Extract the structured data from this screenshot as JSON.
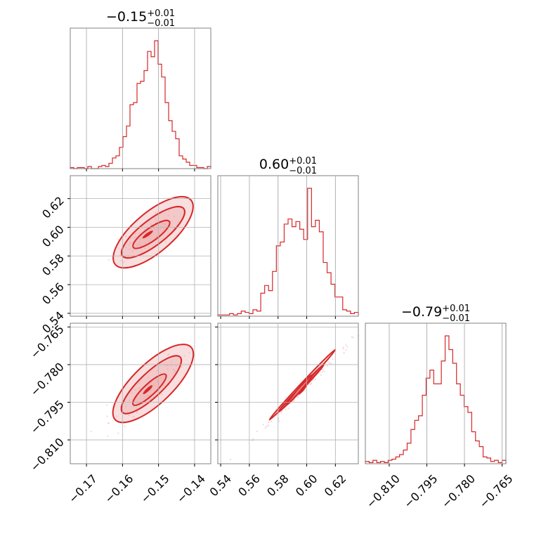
{
  "chart_data": {
    "type": "corner",
    "series_color": "#d62728",
    "grid": true,
    "parameters": [
      {
        "id": "p1",
        "title": {
          "value": "−0.15",
          "plus": "+0.01",
          "minus": "−0.01"
        },
        "range": [
          -0.1745,
          -0.1355
        ],
        "ticks": [
          {
            "v": -0.17,
            "label": "−0.17"
          },
          {
            "v": -0.16,
            "label": "−0.16"
          },
          {
            "v": -0.15,
            "label": "−0.15"
          },
          {
            "v": -0.14,
            "label": "−0.14"
          }
        ],
        "histogram": [
          1,
          0,
          1,
          1,
          0,
          2,
          0,
          0,
          2,
          3,
          2,
          5,
          10,
          12,
          20,
          30,
          40,
          60,
          62,
          80,
          82,
          92,
          110,
          105,
          120,
          98,
          86,
          62,
          45,
          35,
          28,
          12,
          9,
          6,
          3,
          3,
          1,
          1,
          0,
          2
        ]
      },
      {
        "id": "p2",
        "title": {
          "value": "0.60",
          "plus": "+0.01",
          "minus": "−0.01"
        },
        "range": [
          0.538,
          0.636
        ],
        "ticks": [
          {
            "v": 0.54,
            "label": "0.54"
          },
          {
            "v": 0.56,
            "label": "0.56"
          },
          {
            "v": 0.58,
            "label": "0.58"
          },
          {
            "v": 0.6,
            "label": "0.60"
          },
          {
            "v": 0.62,
            "label": "0.62"
          }
        ],
        "histogram": [
          1,
          1,
          1,
          2,
          1,
          2,
          4,
          3,
          2,
          5,
          4,
          18,
          24,
          20,
          35,
          55,
          58,
          72,
          76,
          70,
          74,
          68,
          60,
          100,
          70,
          75,
          66,
          42,
          34,
          25,
          15,
          15,
          5,
          4,
          2,
          3
        ]
      },
      {
        "id": "p3",
        "title": {
          "value": "−0.79",
          "plus": "+0.01",
          "minus": "−0.01"
        },
        "range": [
          -0.8195,
          -0.7635
        ],
        "ticks": [
          {
            "v": -0.81,
            "label": "−0.810"
          },
          {
            "v": -0.795,
            "label": "−0.795"
          },
          {
            "v": -0.78,
            "label": "−0.780"
          },
          {
            "v": -0.765,
            "label": "−0.765"
          }
        ],
        "histogram": [
          2,
          1,
          3,
          1,
          2,
          1,
          3,
          4,
          6,
          8,
          12,
          18,
          30,
          38,
          42,
          60,
          75,
          82,
          70,
          70,
          90,
          112,
          100,
          88,
          70,
          60,
          50,
          45,
          28,
          20,
          15,
          6,
          5,
          2,
          3,
          1,
          3
        ]
      }
    ],
    "pairs": [
      {
        "row": 1,
        "col": 0,
        "x_param": "p1",
        "y_param": "p2",
        "center": [
          -0.153,
          0.595
        ],
        "slope": 2.4,
        "spread_along": 0.0045,
        "spread_perp": 0.0018,
        "levels": [
          {
            "x0": -0.162,
            "y0": 0.574,
            "x1": -0.141,
            "y1": 0.619,
            "w": 0.0055
          },
          {
            "x0": -0.16,
            "y0": 0.58,
            "x1": -0.143,
            "y1": 0.613,
            "w": 0.0035
          },
          {
            "x0": -0.157,
            "y0": 0.586,
            "x1": -0.147,
            "y1": 0.604,
            "w": 0.0018
          }
        ]
      },
      {
        "row": 2,
        "col": 0,
        "x_param": "p1",
        "y_param": "p3",
        "center": [
          -0.153,
          -0.79
        ],
        "slope": 1.35,
        "spread_along": 0.0045,
        "spread_perp": 0.0018,
        "levels": [
          {
            "x0": -0.162,
            "y0": -0.802,
            "x1": -0.141,
            "y1": -0.773,
            "w": 0.0055
          },
          {
            "x0": -0.16,
            "y0": -0.799,
            "x1": -0.144,
            "y1": -0.777,
            "w": 0.0033
          },
          {
            "x0": -0.157,
            "y0": -0.796,
            "x1": -0.148,
            "y1": -0.784,
            "w": 0.0016
          }
        ]
      },
      {
        "row": 2,
        "col": 1,
        "x_param": "p2",
        "y_param": "p3",
        "center": [
          0.597,
          -0.79
        ],
        "slope": 0.56,
        "spread_along": 0.009,
        "spread_perp": 0.0006,
        "levels": [
          {
            "x0": 0.574,
            "y0": -0.802,
            "x1": 0.62,
            "y1": -0.774,
            "w": 0.0012
          },
          {
            "x0": 0.58,
            "y0": -0.799,
            "x1": 0.612,
            "y1": -0.78,
            "w": 0.0007
          },
          {
            "x0": 0.586,
            "y0": -0.796,
            "x1": 0.604,
            "y1": -0.784,
            "w": 0.0004
          }
        ]
      }
    ]
  }
}
